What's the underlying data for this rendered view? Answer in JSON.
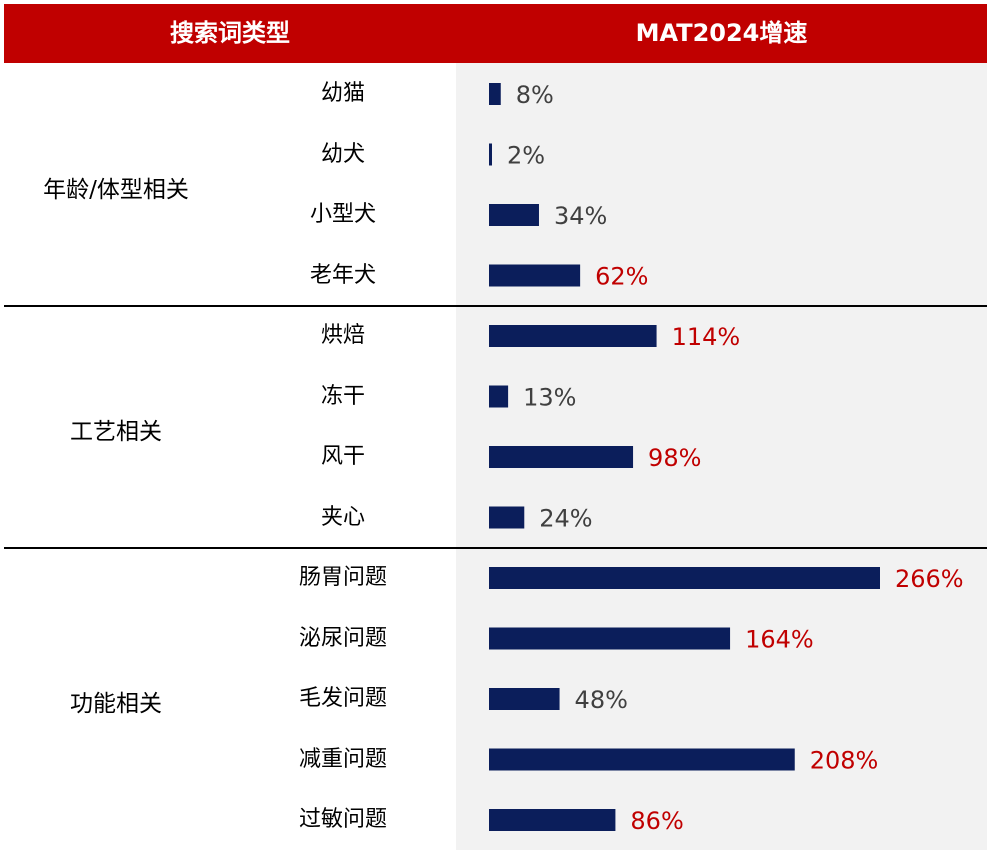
{
  "header": {
    "left_title": "搜索词类型",
    "right_title": "MAT2024增速"
  },
  "colors": {
    "header_bg": "#c00000",
    "bar": "#0b1e5b",
    "label_normal": "#404040",
    "label_highlight": "#c00000"
  },
  "chart_data": {
    "type": "bar",
    "orientation": "horizontal",
    "title": "MAT2024增速",
    "groups": [
      {
        "name": "年龄/体型相关",
        "items": [
          {
            "label": "幼猫",
            "value": 8,
            "value_label": "8%",
            "highlight": false
          },
          {
            "label": "幼犬",
            "value": 2,
            "value_label": "2%",
            "highlight": false
          },
          {
            "label": "小型犬",
            "value": 34,
            "value_label": "34%",
            "highlight": false
          },
          {
            "label": "老年犬",
            "value": 62,
            "value_label": "62%",
            "highlight": true
          }
        ]
      },
      {
        "name": "工艺相关",
        "items": [
          {
            "label": "烘焙",
            "value": 114,
            "value_label": "114%",
            "highlight": true
          },
          {
            "label": "冻干",
            "value": 13,
            "value_label": "13%",
            "highlight": false
          },
          {
            "label": "风干",
            "value": 98,
            "value_label": "98%",
            "highlight": true
          },
          {
            "label": "夹心",
            "value": 24,
            "value_label": "24%",
            "highlight": false
          }
        ]
      },
      {
        "name": "功能相关",
        "items": [
          {
            "label": "肠胃问题",
            "value": 266,
            "value_label": "266%",
            "highlight": true
          },
          {
            "label": "泌尿问题",
            "value": 164,
            "value_label": "164%",
            "highlight": true
          },
          {
            "label": "毛发问题",
            "value": 48,
            "value_label": "48%",
            "highlight": false
          },
          {
            "label": "减重问题",
            "value": 208,
            "value_label": "208%",
            "highlight": true
          },
          {
            "label": "过敏问题",
            "value": 86,
            "value_label": "86%",
            "highlight": true
          }
        ]
      }
    ],
    "xlim": [
      0,
      266
    ],
    "grid": false,
    "legend": "none"
  }
}
